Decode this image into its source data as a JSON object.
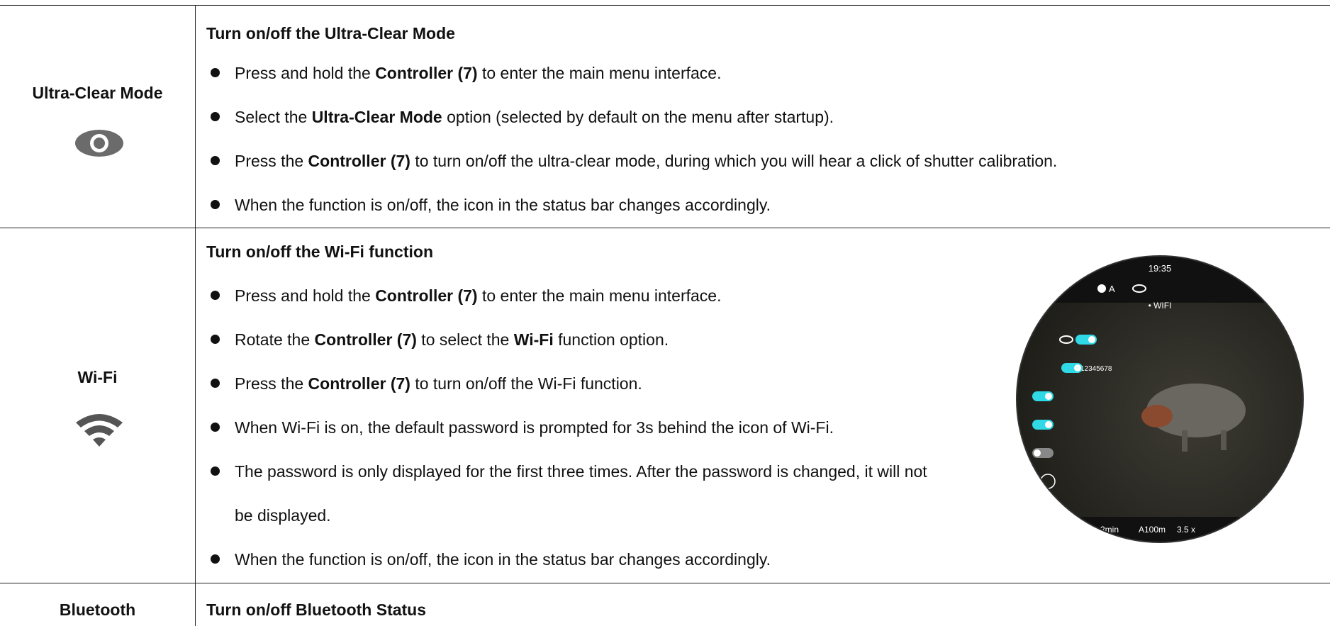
{
  "rows": [
    {
      "label": "Ultra-Clear Mode",
      "heading": "Turn on/off the Ultra-Clear Mode",
      "bullets": [
        [
          {
            "text": "Press and hold the "
          },
          {
            "text": "Controller (7)",
            "bold": true
          },
          {
            "text": " to enter the main menu interface."
          }
        ],
        [
          {
            "text": "Select the "
          },
          {
            "text": "Ultra-Clear Mode",
            "bold": true
          },
          {
            "text": " option (selected by default on the menu after startup)."
          }
        ],
        [
          {
            "text": "Press the "
          },
          {
            "text": "Controller (7)",
            "bold": true
          },
          {
            "text": " to turn on/off the ultra-clear mode, during which you will hear a click of shutter calibration."
          }
        ],
        [
          {
            "text": "When the function is on/off, the icon in the status bar changes accordingly."
          }
        ]
      ]
    },
    {
      "label": "Wi-Fi",
      "heading": "Turn on/off the Wi-Fi function",
      "bullets": [
        [
          {
            "text": "Press and hold the "
          },
          {
            "text": "Controller (7)",
            "bold": true
          },
          {
            "text": " to enter the main menu interface."
          }
        ],
        [
          {
            "text": "Rotate the "
          },
          {
            "text": "Controller (7)",
            "bold": true
          },
          {
            "text": " to select the "
          },
          {
            "text": "Wi-Fi",
            "bold": true
          },
          {
            "text": " function option."
          }
        ],
        [
          {
            "text": "Press the "
          },
          {
            "text": "Controller (7)",
            "bold": true
          },
          {
            "text": " to turn on/off the Wi-Fi function."
          }
        ],
        [
          {
            "text": "When Wi-Fi is on, the default password is prompted for 3s behind the icon of Wi-Fi."
          }
        ],
        [
          {
            "text": "The password is only displayed for the first three times. After the password is changed, it will not be displayed."
          }
        ],
        [
          {
            "text": "When the function is on/off, the icon in the status bar changes accordingly."
          }
        ]
      ],
      "screen": {
        "time": "19:35",
        "mode": "A",
        "menu": "• WIFI",
        "password": "12345678",
        "status": [
          "2min",
          "A100m",
          "3.5 x"
        ]
      }
    },
    {
      "label": "Bluetooth",
      "heading": "Turn on/off Bluetooth Status",
      "bullets": []
    }
  ]
}
